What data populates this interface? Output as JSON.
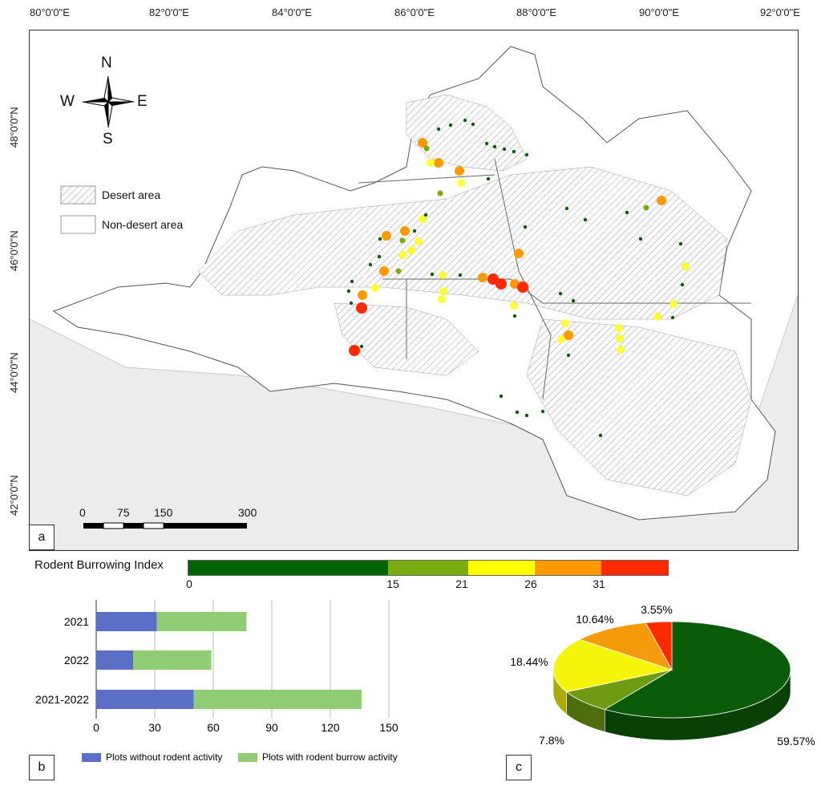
{
  "map": {
    "lon_labels": [
      "80°0'0\"E",
      "82°0'0\"E",
      "84°0'0\"E",
      "86°0'0\"E",
      "88°0'0\"E",
      "90°0'0\"E",
      "92°0'0\"E"
    ],
    "lat_labels": [
      "48°0'0\"N",
      "46°0'0\"N",
      "44°0'0\"N",
      "42°0'0\"N"
    ],
    "compass": {
      "n": "N",
      "s": "S",
      "e": "E",
      "w": "W"
    },
    "legend": {
      "desert": "Desert area",
      "non_desert": "Non-desert area"
    },
    "scale_labels": [
      "0",
      "75",
      "150",
      "300"
    ],
    "panel_tag": "a"
  },
  "colorbar": {
    "title": "Rodent Burrowing Index",
    "ticks": [
      "0",
      "15",
      "21",
      "26",
      "31"
    ],
    "classes": [
      {
        "from": 0,
        "to": 15,
        "color": "#006400"
      },
      {
        "from": 15,
        "to": 21,
        "color": "#7aab10"
      },
      {
        "from": 21,
        "to": 26,
        "color": "#ffff00"
      },
      {
        "from": 26,
        "to": 31,
        "color": "#ff9900"
      },
      {
        "from": 31,
        "to": 35,
        "color": "#ff2a00"
      }
    ]
  },
  "chart_data": [
    {
      "type": "bar",
      "orientation": "horizontal",
      "stacked": true,
      "categories": [
        "2021",
        "2022",
        "2021-2022"
      ],
      "series": [
        {
          "name": "Plots without rodent activity",
          "color": "#5b6fc7",
          "values": [
            31,
            19,
            50
          ]
        },
        {
          "name": "Plots with rodent burrow activity",
          "color": "#90cc74",
          "values": [
            46,
            40,
            86
          ]
        }
      ],
      "xticks": [
        "0",
        "30",
        "60",
        "90",
        "120",
        "150"
      ],
      "xlim": [
        0,
        150
      ],
      "grid": true,
      "legend_position": "bottom",
      "panel_tag": "b"
    },
    {
      "type": "pie",
      "labels": [
        "59.57%",
        "7.8%",
        "18.44%",
        "10.64%",
        "3.55%"
      ],
      "values": [
        59.57,
        7.8,
        18.44,
        10.64,
        3.55
      ],
      "colors": [
        "#0b5c08",
        "#6f9b12",
        "#f5f50a",
        "#f59a0a",
        "#ff2a00"
      ],
      "panel_tag": "c"
    }
  ]
}
